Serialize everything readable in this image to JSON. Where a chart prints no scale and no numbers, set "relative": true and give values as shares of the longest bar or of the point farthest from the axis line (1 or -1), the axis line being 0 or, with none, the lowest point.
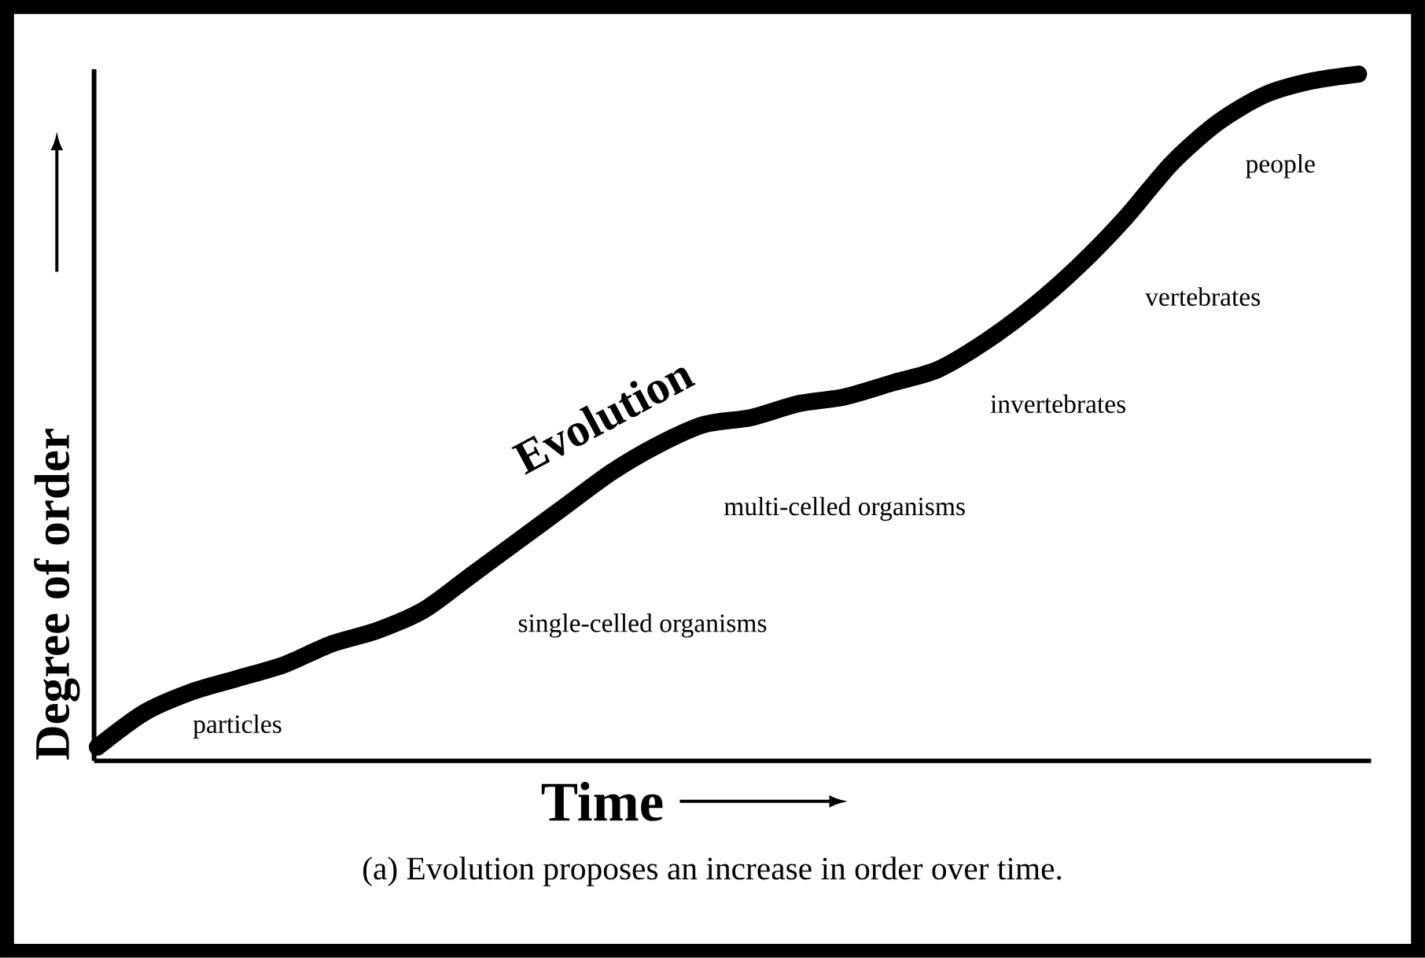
{
  "chart_data": {
    "type": "line",
    "relative": true,
    "color": "#000000",
    "xlabel": "Time",
    "ylabel": "Degree of order",
    "categories": [
      null,
      null,
      null,
      null,
      null,
      null,
      null,
      null,
      null,
      null,
      null,
      null,
      null,
      null,
      null,
      null,
      null,
      null,
      null,
      null,
      null,
      null,
      null,
      null,
      null,
      null,
      null,
      null
    ],
    "values": [
      0.02,
      0.07,
      0.1,
      0.12,
      0.14,
      0.17,
      0.19,
      0.22,
      0.27,
      0.32,
      0.37,
      0.42,
      0.46,
      0.49,
      0.5,
      0.52,
      0.53,
      0.55,
      0.57,
      0.61,
      0.66,
      0.72,
      0.79,
      0.87,
      0.93,
      0.97,
      0.99,
      1
    ],
    "annotations": [
      "**Evolution**",
      "particles",
      "single-celled organisms",
      "multi-celled organisms",
      "invertebrates",
      "vertebrates",
      "people",
      "(a) Evolution proposes an increase in order over time."
    ]
  }
}
